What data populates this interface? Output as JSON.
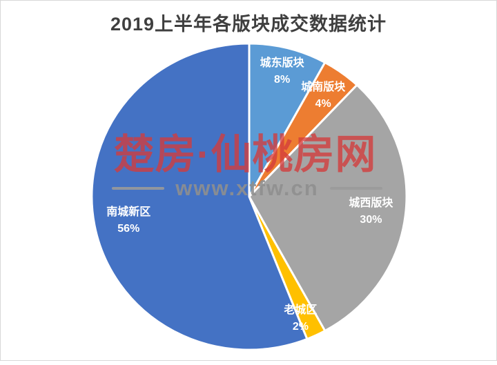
{
  "page": {
    "background": "#ffffff",
    "border_color": "#d7d7d7"
  },
  "title": {
    "text": "2019上半年各版块成交数据统计",
    "color": "#3f3f3f"
  },
  "watermark": {
    "brand": "楚房·仙桃房网",
    "brand_color": "#d43c3c",
    "url": "www.xtfw.cn",
    "url_color": "#8f8f8f",
    "dash_color": "#9a9a9a"
  },
  "chart_data": {
    "type": "pie",
    "title": "2019上半年各版块成交数据统计",
    "direction": "clockwise",
    "start_angle_deg": 0,
    "legend": "none",
    "data_label_style": "category name and percent, white bold, inside slices",
    "slice_border_color": "#ffffff",
    "categories": [
      "城东版块",
      "城南版块",
      "城西版块",
      "老城区",
      "南城新区"
    ],
    "values": [
      8,
      4,
      30,
      2,
      56
    ],
    "slices": [
      {
        "name": "城东版块",
        "value_pct": 8,
        "color": "#5B9BD5"
      },
      {
        "name": "城南版块",
        "value_pct": 4,
        "color": "#ED7D31"
      },
      {
        "name": "城西版块",
        "value_pct": 30,
        "color": "#A5A5A5"
      },
      {
        "name": "老城区",
        "value_pct": 2,
        "color": "#FFC000"
      },
      {
        "name": "南城新区",
        "value_pct": 56,
        "color": "#4472C4"
      }
    ]
  }
}
